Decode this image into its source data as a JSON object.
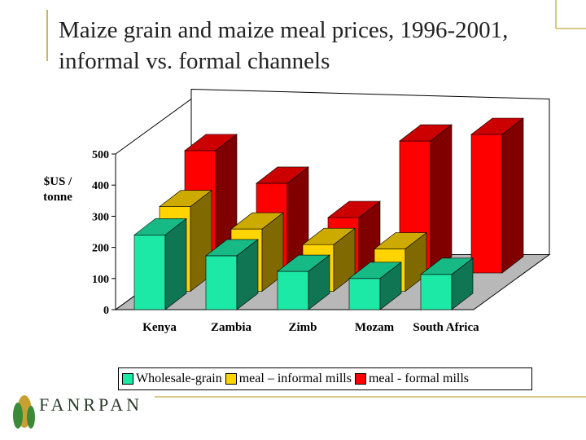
{
  "chart_data": {
    "type": "bar3d",
    "title": "Maize grain and maize meal prices, 1996-2001, informal vs. formal channels",
    "y_label": "$US / tonne",
    "categories": [
      "Kenya",
      "Zambia",
      "Zimb",
      "Mozam",
      "South Africa"
    ],
    "series": [
      {
        "name": "Wholesale-grain",
        "color": "#1de9a6",
        "values": [
          240,
          173,
          123,
          100,
          113
        ]
      },
      {
        "name": "meal – informal mills",
        "color": "#ffd400",
        "values": [
          272,
          200,
          150,
          136,
          null
        ]
      },
      {
        "name": "meal - formal mills",
        "color": "#ff0000",
        "values": [
          393,
          288,
          178,
          424,
          445
        ]
      }
    ],
    "ylim": [
      0,
      500
    ],
    "yticks": [
      0,
      100,
      200,
      300,
      400,
      500
    ]
  },
  "logo": "FANRPAN"
}
